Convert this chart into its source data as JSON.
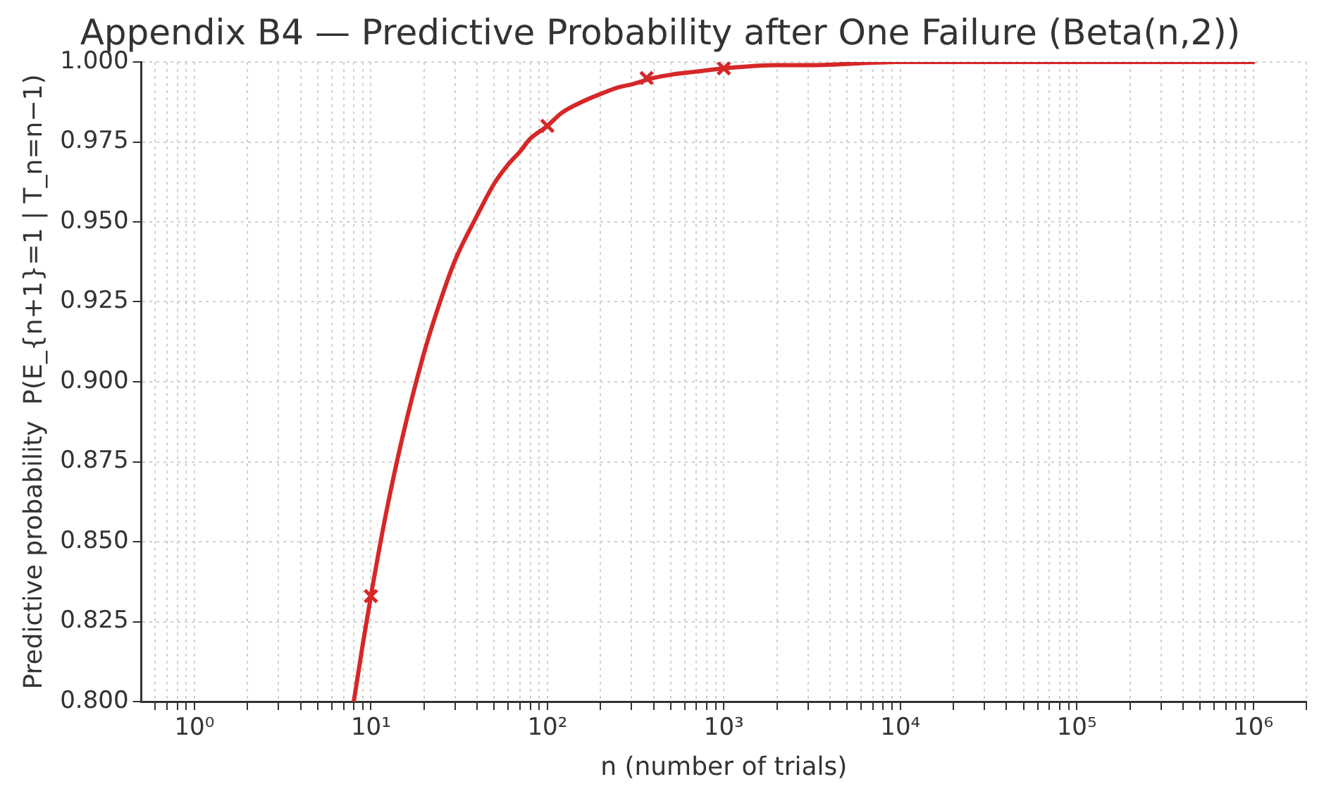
{
  "chart_data": {
    "type": "line",
    "title": "Appendix B4 — Predictive Probability after One Failure (Beta(n,2))",
    "xlabel": "n (number of trials)",
    "ylabel": "Predictive probability  P(E_{n+1}=1 | T_n=n−1)",
    "log": "x",
    "grid": true,
    "legend": false,
    "xlim": [
      0.5,
      2000000
    ],
    "ylim": [
      0.8,
      1.0
    ],
    "xticks": [
      {
        "value": 0.6,
        "label": null
      },
      {
        "value": 0.7,
        "label": null
      },
      {
        "value": 0.8,
        "label": null
      },
      {
        "value": 0.9,
        "label": null
      },
      {
        "value": 1,
        "label": "10⁰"
      },
      {
        "value": 2,
        "label": null
      },
      {
        "value": 3,
        "label": null
      },
      {
        "value": 4,
        "label": null
      },
      {
        "value": 5,
        "label": null
      },
      {
        "value": 6,
        "label": null
      },
      {
        "value": 7,
        "label": null
      },
      {
        "value": 8,
        "label": null
      },
      {
        "value": 9,
        "label": null
      },
      {
        "value": 10,
        "label": "10¹"
      },
      {
        "value": 20,
        "label": null
      },
      {
        "value": 30,
        "label": null
      },
      {
        "value": 40,
        "label": null
      },
      {
        "value": 50,
        "label": null
      },
      {
        "value": 60,
        "label": null
      },
      {
        "value": 70,
        "label": null
      },
      {
        "value": 80,
        "label": null
      },
      {
        "value": 90,
        "label": null
      },
      {
        "value": 100,
        "label": "10²"
      },
      {
        "value": 200,
        "label": null
      },
      {
        "value": 300,
        "label": null
      },
      {
        "value": 400,
        "label": null
      },
      {
        "value": 500,
        "label": null
      },
      {
        "value": 600,
        "label": null
      },
      {
        "value": 700,
        "label": null
      },
      {
        "value": 800,
        "label": null
      },
      {
        "value": 900,
        "label": null
      },
      {
        "value": 1000,
        "label": "10³"
      },
      {
        "value": 2000,
        "label": null
      },
      {
        "value": 3000,
        "label": null
      },
      {
        "value": 4000,
        "label": null
      },
      {
        "value": 5000,
        "label": null
      },
      {
        "value": 6000,
        "label": null
      },
      {
        "value": 7000,
        "label": null
      },
      {
        "value": 8000,
        "label": null
      },
      {
        "value": 9000,
        "label": null
      },
      {
        "value": 10000,
        "label": "10⁴"
      },
      {
        "value": 20000,
        "label": null
      },
      {
        "value": 30000,
        "label": null
      },
      {
        "value": 40000,
        "label": null
      },
      {
        "value": 50000,
        "label": null
      },
      {
        "value": 60000,
        "label": null
      },
      {
        "value": 70000,
        "label": null
      },
      {
        "value": 80000,
        "label": null
      },
      {
        "value": 90000,
        "label": null
      },
      {
        "value": 100000,
        "label": "10⁵"
      },
      {
        "value": 200000,
        "label": null
      },
      {
        "value": 300000,
        "label": null
      },
      {
        "value": 400000,
        "label": null
      },
      {
        "value": 500000,
        "label": null
      },
      {
        "value": 600000,
        "label": null
      },
      {
        "value": 700000,
        "label": null
      },
      {
        "value": 800000,
        "label": null
      },
      {
        "value": 900000,
        "label": null
      },
      {
        "value": 1000000,
        "label": "10⁶"
      },
      {
        "value": 2000000,
        "label": null
      }
    ],
    "yticks": [
      {
        "value": 0.8,
        "label": "0.800"
      },
      {
        "value": 0.825,
        "label": "0.825"
      },
      {
        "value": 0.85,
        "label": "0.850"
      },
      {
        "value": 0.875,
        "label": "0.875"
      },
      {
        "value": 0.9,
        "label": "0.900"
      },
      {
        "value": 0.925,
        "label": "0.925"
      },
      {
        "value": 0.95,
        "label": "0.950"
      },
      {
        "value": 0.975,
        "label": "0.975"
      },
      {
        "value": 1.0,
        "label": "1.000"
      }
    ],
    "series": [
      {
        "color": "#d62728",
        "marker": "none",
        "line_style": "solid",
        "x": [
          8,
          9,
          10,
          12,
          15,
          20,
          25,
          30,
          40,
          50,
          60,
          70,
          80,
          100,
          120,
          150,
          200,
          250,
          300,
          400,
          500,
          700,
          1000,
          2000,
          3000,
          10000,
          100000,
          1000000
        ],
        "values": [
          0.8,
          0.818,
          0.833,
          0.857,
          0.882,
          0.909,
          0.926,
          0.938,
          0.952,
          0.962,
          0.968,
          0.972,
          0.976,
          0.98,
          0.984,
          0.987,
          0.99,
          0.992,
          0.993,
          0.995,
          0.996,
          0.997,
          0.998,
          0.999,
          0.999,
          1.0,
          1.0,
          1.0
        ]
      },
      {
        "type": "scatter",
        "color": "#d62728",
        "marker": "cross",
        "x": [
          10,
          100,
          365,
          1000
        ],
        "values": [
          0.833,
          0.98,
          0.995,
          0.998
        ]
      }
    ]
  }
}
